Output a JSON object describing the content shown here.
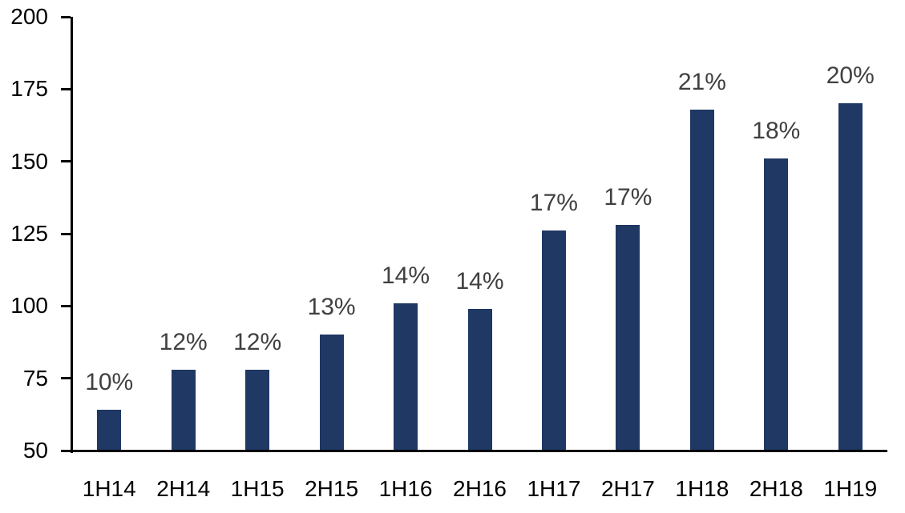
{
  "chart_data": {
    "type": "bar",
    "title": "",
    "xlabel": "",
    "ylabel": "",
    "categories": [
      "1H14",
      "2H14",
      "1H15",
      "2H15",
      "1H16",
      "2H16",
      "1H17",
      "2H17",
      "1H18",
      "2H18",
      "1H19"
    ],
    "values": [
      64,
      78,
      78,
      90,
      101,
      99,
      126,
      128,
      168,
      151,
      170
    ],
    "bar_labels": [
      "10%",
      "12%",
      "12%",
      "13%",
      "14%",
      "14%",
      "17%",
      "17%",
      "21%",
      "18%",
      "20%"
    ],
    "ylim": [
      50,
      200
    ],
    "yticks": [
      50,
      75,
      100,
      125,
      150,
      175,
      200
    ],
    "grid": "off",
    "legend": "none",
    "colors": {
      "bar_fill": "#1F3864",
      "bar_label_text": "#404040",
      "axis_line": "#000000",
      "tick_label_text": "#000000"
    }
  }
}
